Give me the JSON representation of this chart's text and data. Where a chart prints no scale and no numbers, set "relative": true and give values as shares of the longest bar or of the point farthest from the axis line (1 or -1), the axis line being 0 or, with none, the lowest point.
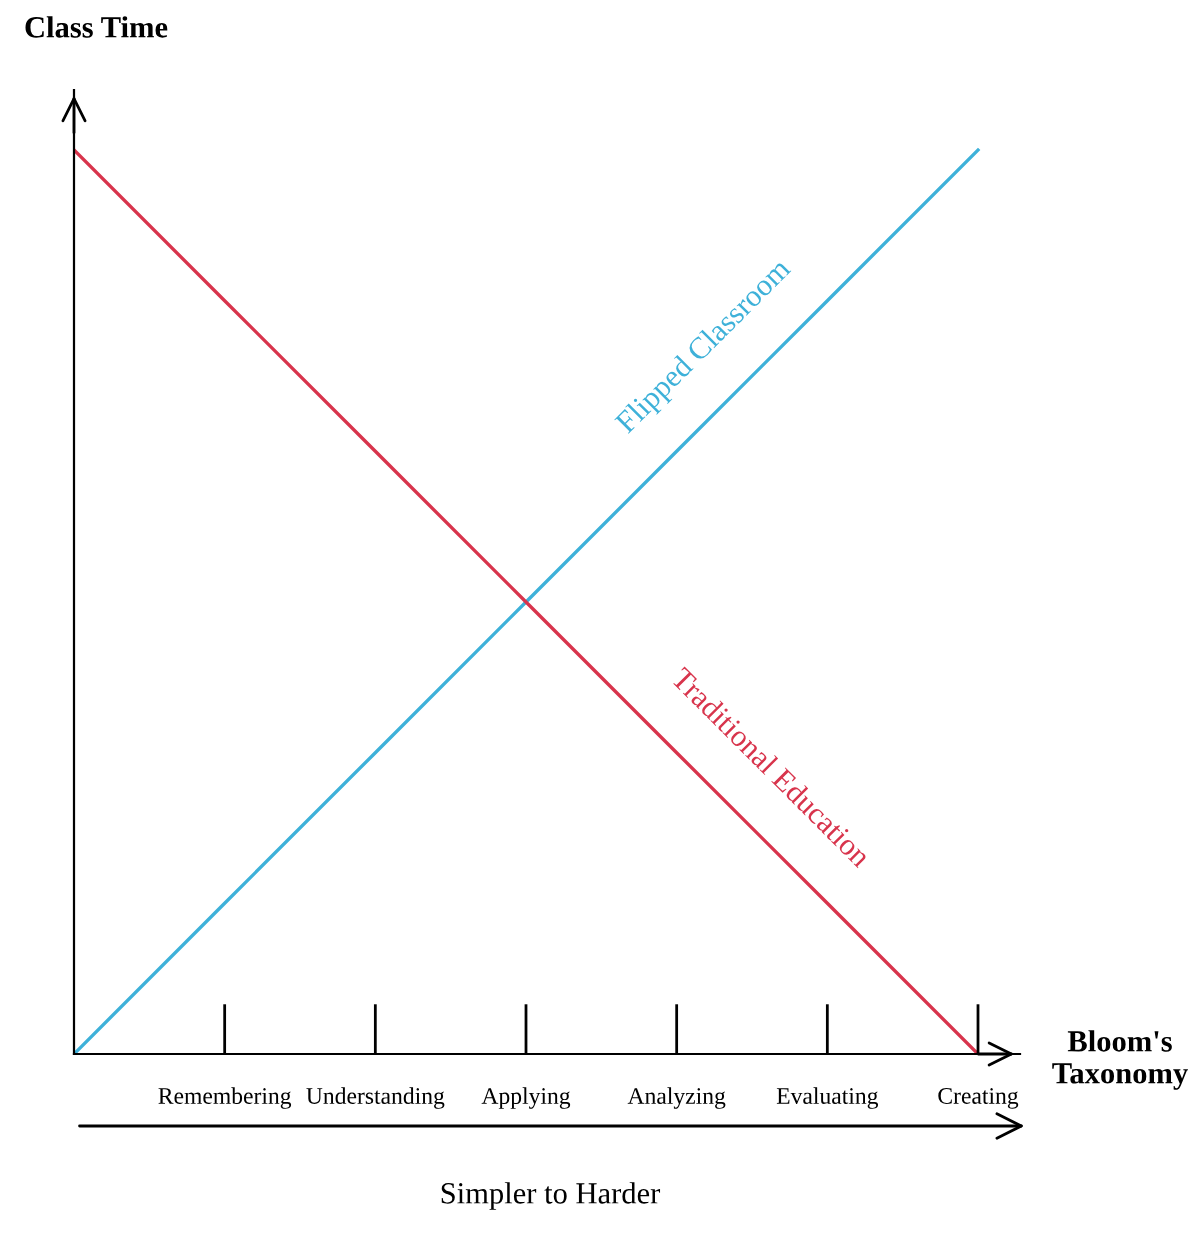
{
  "chart_data": {
    "type": "line",
    "relative": true,
    "xlabel": "Bloom's\nTaxonomy",
    "ylabel": "Class Time",
    "categories": [
      null,
      "Remembering",
      "Understanding",
      "Applying",
      "Analyzing",
      "Evaluating",
      "Creating"
    ],
    "series": [
      {
        "name": "Flipped Classroom",
        "color": "#3eb1d9",
        "values": [
          0,
          0.1667,
          0.3333,
          0.5,
          0.6667,
          0.8333,
          1
        ]
      },
      {
        "name": "Traditional Education",
        "color": "#d8344c",
        "values": [
          1,
          0.8333,
          0.6667,
          0.5,
          0.3333,
          0.1667,
          0
        ]
      }
    ],
    "annotations": [
      "Simpler to Harder"
    ],
    "grid": false,
    "legend": false,
    "marker": "none",
    "line_style": "solid"
  }
}
